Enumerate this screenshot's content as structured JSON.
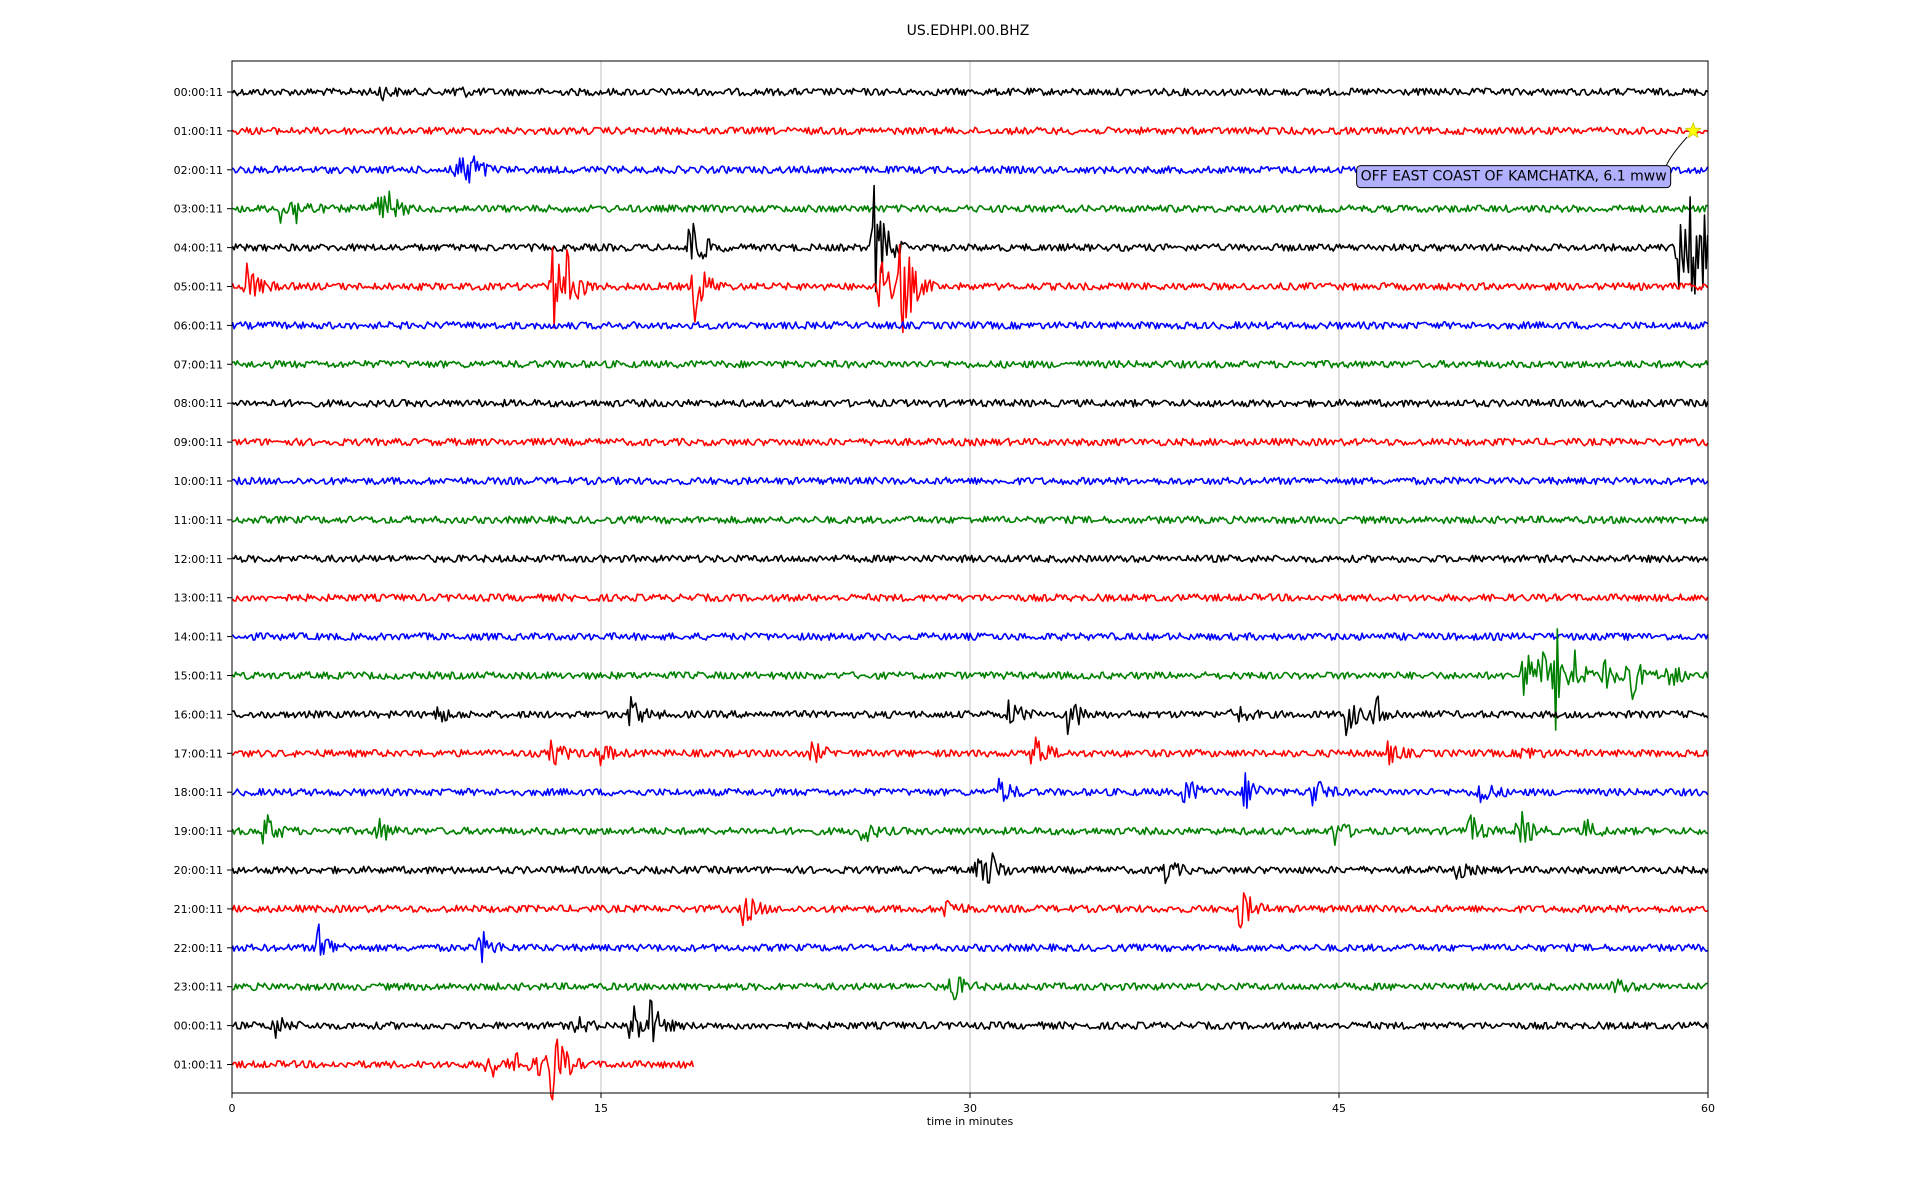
{
  "chart_data": {
    "type": "line",
    "title": "US.EDHPI.00.BHZ",
    "xlabel": "time in minutes",
    "xlim": [
      0,
      60
    ],
    "xticks": [
      0,
      15,
      30,
      45,
      60
    ],
    "xtick_labels": [
      "0",
      "15",
      "30",
      "45",
      "60"
    ],
    "grid": "vertical",
    "row_colors": [
      "#000000",
      "#ff0000",
      "#0000ff",
      "#008000"
    ],
    "rows": [
      {
        "label": "00:00:11",
        "end_minute": 60,
        "events": [
          [
            6,
            0.4
          ],
          [
            9,
            0.4
          ]
        ]
      },
      {
        "label": "01:00:11",
        "end_minute": 60,
        "events": []
      },
      {
        "label": "02:00:11",
        "end_minute": 60,
        "events": [
          [
            9,
            1.3
          ],
          [
            9.6,
            1.1
          ]
        ]
      },
      {
        "label": "03:00:11",
        "end_minute": 60,
        "events": [
          [
            2,
            0.9
          ],
          [
            2.6,
            0.7
          ],
          [
            5.8,
            0.8
          ],
          [
            6.2,
            1.0
          ]
        ]
      },
      {
        "label": "04:00:11",
        "end_minute": 60,
        "events": [
          [
            18.6,
            2.2
          ],
          [
            26.1,
            3.5
          ],
          [
            58.8,
            2.4
          ],
          [
            59.3,
            4.0
          ],
          [
            59.7,
            3.2
          ]
        ]
      },
      {
        "label": "05:00:11",
        "end_minute": 60,
        "events": [
          [
            0.6,
            1.2
          ],
          [
            13,
            2.8
          ],
          [
            13.6,
            1.4
          ],
          [
            18.8,
            2.0
          ],
          [
            26.3,
            1.8
          ],
          [
            27.2,
            3.4
          ]
        ]
      },
      {
        "label": "06:00:11",
        "end_minute": 60,
        "events": []
      },
      {
        "label": "07:00:11",
        "end_minute": 60,
        "events": []
      },
      {
        "label": "08:00:11",
        "end_minute": 60,
        "events": []
      },
      {
        "label": "09:00:11",
        "end_minute": 60,
        "events": []
      },
      {
        "label": "10:00:11",
        "end_minute": 60,
        "events": []
      },
      {
        "label": "11:00:11",
        "end_minute": 60,
        "events": []
      },
      {
        "label": "12:00:11",
        "end_minute": 60,
        "events": []
      },
      {
        "label": "13:00:11",
        "end_minute": 60,
        "events": []
      },
      {
        "label": "14:00:11",
        "end_minute": 60,
        "events": []
      },
      {
        "label": "15:00:11",
        "end_minute": 60,
        "events": [
          [
            52.5,
            1.8
          ],
          [
            53.2,
            1.3
          ],
          [
            53.8,
            2.8
          ],
          [
            54.6,
            1.0
          ],
          [
            55.7,
            0.9
          ],
          [
            56.7,
            2.0
          ],
          [
            58.4,
            0.8
          ]
        ]
      },
      {
        "label": "16:00:11",
        "end_minute": 60,
        "events": [
          [
            8.3,
            0.5
          ],
          [
            16.2,
            0.9
          ],
          [
            31.6,
            0.8
          ],
          [
            34,
            1.2
          ],
          [
            40.7,
            0.7
          ],
          [
            45.3,
            1.1
          ],
          [
            46.5,
            1.0
          ]
        ]
      },
      {
        "label": "17:00:11",
        "end_minute": 60,
        "events": [
          [
            13,
            0.8
          ],
          [
            14.9,
            0.7
          ],
          [
            23.6,
            0.6
          ],
          [
            32.5,
            1.5
          ],
          [
            47,
            0.6
          ],
          [
            52.5,
            0.5
          ]
        ]
      },
      {
        "label": "18:00:11",
        "end_minute": 60,
        "events": [
          [
            31.2,
            0.8
          ],
          [
            38.7,
            1.0
          ],
          [
            41.2,
            1.2
          ],
          [
            43.9,
            1.0
          ],
          [
            50.7,
            0.8
          ]
        ]
      },
      {
        "label": "19:00:11",
        "end_minute": 60,
        "events": [
          [
            1.3,
            1.1
          ],
          [
            5.9,
            0.8
          ],
          [
            25.6,
            0.7
          ],
          [
            44.8,
            0.8
          ],
          [
            50.3,
            0.9
          ],
          [
            52.3,
            1.3
          ],
          [
            55,
            0.6
          ]
        ]
      },
      {
        "label": "20:00:11",
        "end_minute": 60,
        "events": [
          [
            30.3,
            0.8
          ],
          [
            30.8,
            0.9
          ],
          [
            37.8,
            0.9
          ],
          [
            49.8,
            0.4
          ]
        ]
      },
      {
        "label": "21:00:11",
        "end_minute": 60,
        "events": [
          [
            20.8,
            1.0
          ],
          [
            29,
            0.7
          ],
          [
            41,
            1.3
          ]
        ]
      },
      {
        "label": "22:00:11",
        "end_minute": 60,
        "events": [
          [
            3.5,
            1.4
          ],
          [
            10.1,
            1.0
          ]
        ]
      },
      {
        "label": "23:00:11",
        "end_minute": 60,
        "events": [
          [
            29.2,
            1.0
          ],
          [
            56.2,
            0.5
          ]
        ]
      },
      {
        "label": "00:00:11",
        "end_minute": 60,
        "events": [
          [
            1.6,
            0.9
          ],
          [
            14,
            0.5
          ],
          [
            16.2,
            1.6
          ],
          [
            17,
            1.2
          ]
        ]
      },
      {
        "label": "01:00:11",
        "end_minute": 18.8,
        "events": [
          [
            10.4,
            0.9
          ],
          [
            11.6,
            0.7
          ],
          [
            12.5,
            0.7
          ],
          [
            13,
            2.4
          ]
        ]
      }
    ],
    "event_marker": {
      "row": 1,
      "minute": 59.4,
      "color": "#ffff00"
    },
    "annotation": {
      "text": "OFF EAST COAST OF KAMCHATKA, 6.1 mww",
      "row": 2.15,
      "minute": 52.1
    }
  }
}
